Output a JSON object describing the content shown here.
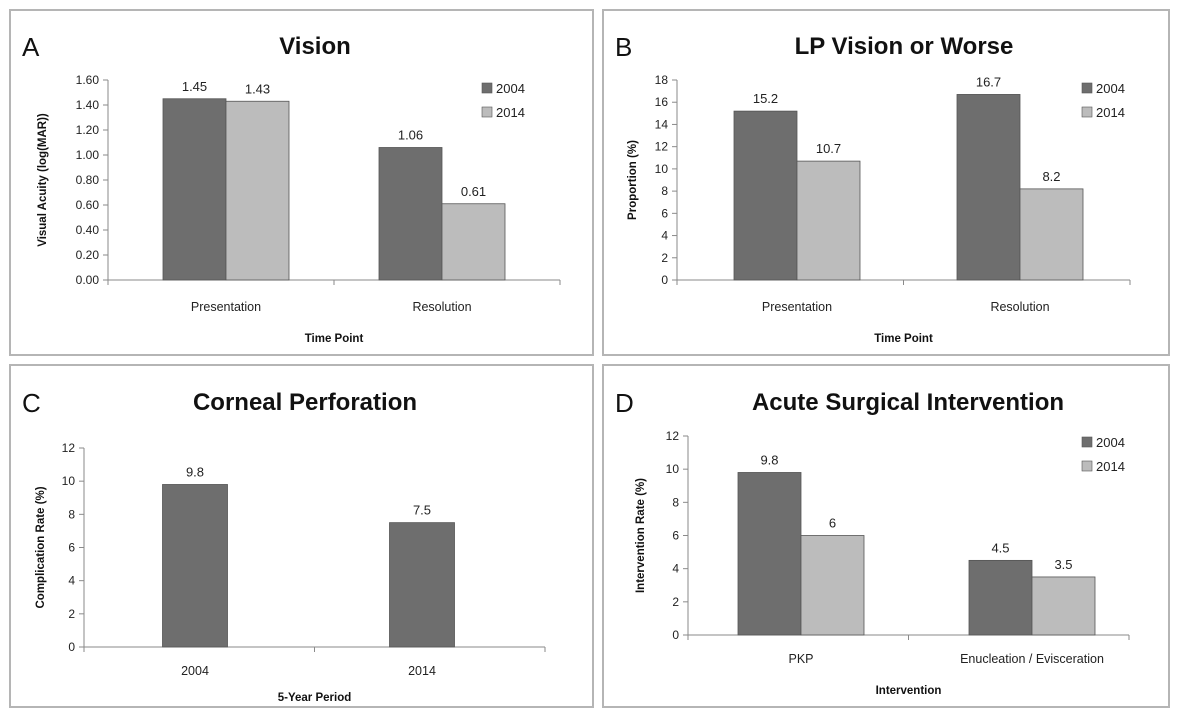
{
  "colors": {
    "series_2004": "#6e6e6e",
    "series_2014": "#bcbcbc",
    "axis": "#8a8a8a",
    "panel_border": "#b5b5b5"
  },
  "chart_data": [
    {
      "panel": "A",
      "type": "bar",
      "title": "Vision",
      "xlabel": "Time Point",
      "ylabel": "Visual Acuity (log(MAR))",
      "categories": [
        "Presentation",
        "Resolution"
      ],
      "series": [
        {
          "name": "2004",
          "values": [
            1.45,
            1.06
          ],
          "labels": [
            "1.45",
            "1.06"
          ]
        },
        {
          "name": "2014",
          "values": [
            1.43,
            0.61
          ],
          "labels": [
            "1.43",
            "0.61"
          ]
        }
      ],
      "ylim": [
        0,
        1.6
      ],
      "yticks": [
        "0.00",
        "0.20",
        "0.40",
        "0.60",
        "0.80",
        "1.00",
        "1.20",
        "1.40",
        "1.60"
      ],
      "legend": "top-right",
      "grid": false
    },
    {
      "panel": "B",
      "type": "bar",
      "title": "LP Vision or Worse",
      "xlabel": "Time Point",
      "ylabel": "Proportion (%)",
      "categories": [
        "Presentation",
        "Resolution"
      ],
      "series": [
        {
          "name": "2004",
          "values": [
            15.2,
            16.7
          ],
          "labels": [
            "15.2",
            "16.7"
          ]
        },
        {
          "name": "2014",
          "values": [
            10.7,
            8.2
          ],
          "labels": [
            "10.7",
            "8.2"
          ]
        }
      ],
      "ylim": [
        0,
        18
      ],
      "yticks": [
        "0",
        "2",
        "4",
        "6",
        "8",
        "10",
        "12",
        "14",
        "16",
        "18"
      ],
      "legend": "top-right",
      "grid": false
    },
    {
      "panel": "C",
      "type": "bar",
      "title": "Corneal Perforation",
      "xlabel": "5-Year Period",
      "ylabel": "Complication Rate (%)",
      "categories": [
        "2004",
        "2014"
      ],
      "series": [
        {
          "name": "",
          "values": [
            9.8,
            7.5
          ],
          "labels": [
            "9.8",
            "7.5"
          ]
        }
      ],
      "ylim": [
        0,
        12
      ],
      "yticks": [
        "0",
        "2",
        "4",
        "6",
        "8",
        "10",
        "12"
      ],
      "legend": "none",
      "grid": false
    },
    {
      "panel": "D",
      "type": "bar",
      "title": "Acute Surgical Intervention",
      "xlabel": "Intervention",
      "ylabel": "Intervention Rate (%)",
      "categories": [
        "PKP",
        "Enucleation / Evisceration"
      ],
      "series": [
        {
          "name": "2004",
          "values": [
            9.8,
            4.5
          ],
          "labels": [
            "9.8",
            "4.5"
          ]
        },
        {
          "name": "2014",
          "values": [
            6,
            3.5
          ],
          "labels": [
            "6",
            "3.5"
          ]
        }
      ],
      "ylim": [
        0,
        12
      ],
      "yticks": [
        "0",
        "2",
        "4",
        "6",
        "8",
        "10",
        "12"
      ],
      "legend": "top-right",
      "grid": false
    }
  ]
}
